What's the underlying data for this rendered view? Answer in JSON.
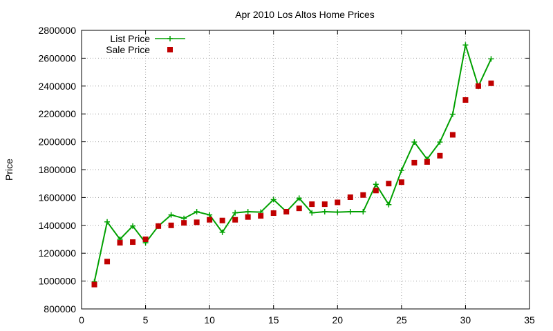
{
  "chart_data": {
    "type": "line",
    "title": "Apr 2010 Los Altos Home Prices",
    "xlabel": "",
    "ylabel": "Price",
    "xlim": [
      0,
      35
    ],
    "ylim": [
      800000,
      2800000
    ],
    "x_ticks": [
      0,
      5,
      10,
      15,
      20,
      25,
      30,
      35
    ],
    "y_ticks": [
      800000,
      1000000,
      1200000,
      1400000,
      1600000,
      1800000,
      2000000,
      2200000,
      2400000,
      2600000,
      2800000
    ],
    "grid": true,
    "legend_position": "top-left",
    "series": [
      {
        "name": "List Price",
        "style": "line+cross",
        "color": "#00a000",
        "x": [
          1,
          2,
          3,
          4,
          5,
          6,
          7,
          8,
          9,
          10,
          11,
          12,
          13,
          14,
          15,
          16,
          17,
          18,
          19,
          20,
          21,
          22,
          23,
          24,
          25,
          26,
          27,
          28,
          29,
          30,
          31,
          32
        ],
        "values": [
          995000,
          1425000,
          1300000,
          1395000,
          1275000,
          1395000,
          1475000,
          1450000,
          1498000,
          1475000,
          1350000,
          1490000,
          1498000,
          1495000,
          1585000,
          1498000,
          1595000,
          1490000,
          1498000,
          1495000,
          1498000,
          1498000,
          1695000,
          1549000,
          1795000,
          1998000,
          1875000,
          1998000,
          2198000,
          2695000,
          2398000,
          2595000
        ]
      },
      {
        "name": "Sale Price",
        "style": "points",
        "color": "#c00000",
        "x": [
          1,
          2,
          3,
          4,
          5,
          6,
          7,
          8,
          9,
          10,
          11,
          12,
          13,
          14,
          15,
          16,
          17,
          18,
          19,
          20,
          21,
          22,
          23,
          24,
          25,
          26,
          27,
          28,
          29,
          30,
          31,
          32
        ],
        "values": [
          975000,
          1140000,
          1275000,
          1280000,
          1300000,
          1395000,
          1400000,
          1418000,
          1422000,
          1440000,
          1435000,
          1440000,
          1460000,
          1468000,
          1488000,
          1498000,
          1522000,
          1552000,
          1552000,
          1565000,
          1602000,
          1618000,
          1650000,
          1700000,
          1710000,
          1850000,
          1855000,
          1900000,
          2050000,
          2300000,
          2400000,
          2420000
        ]
      }
    ]
  }
}
